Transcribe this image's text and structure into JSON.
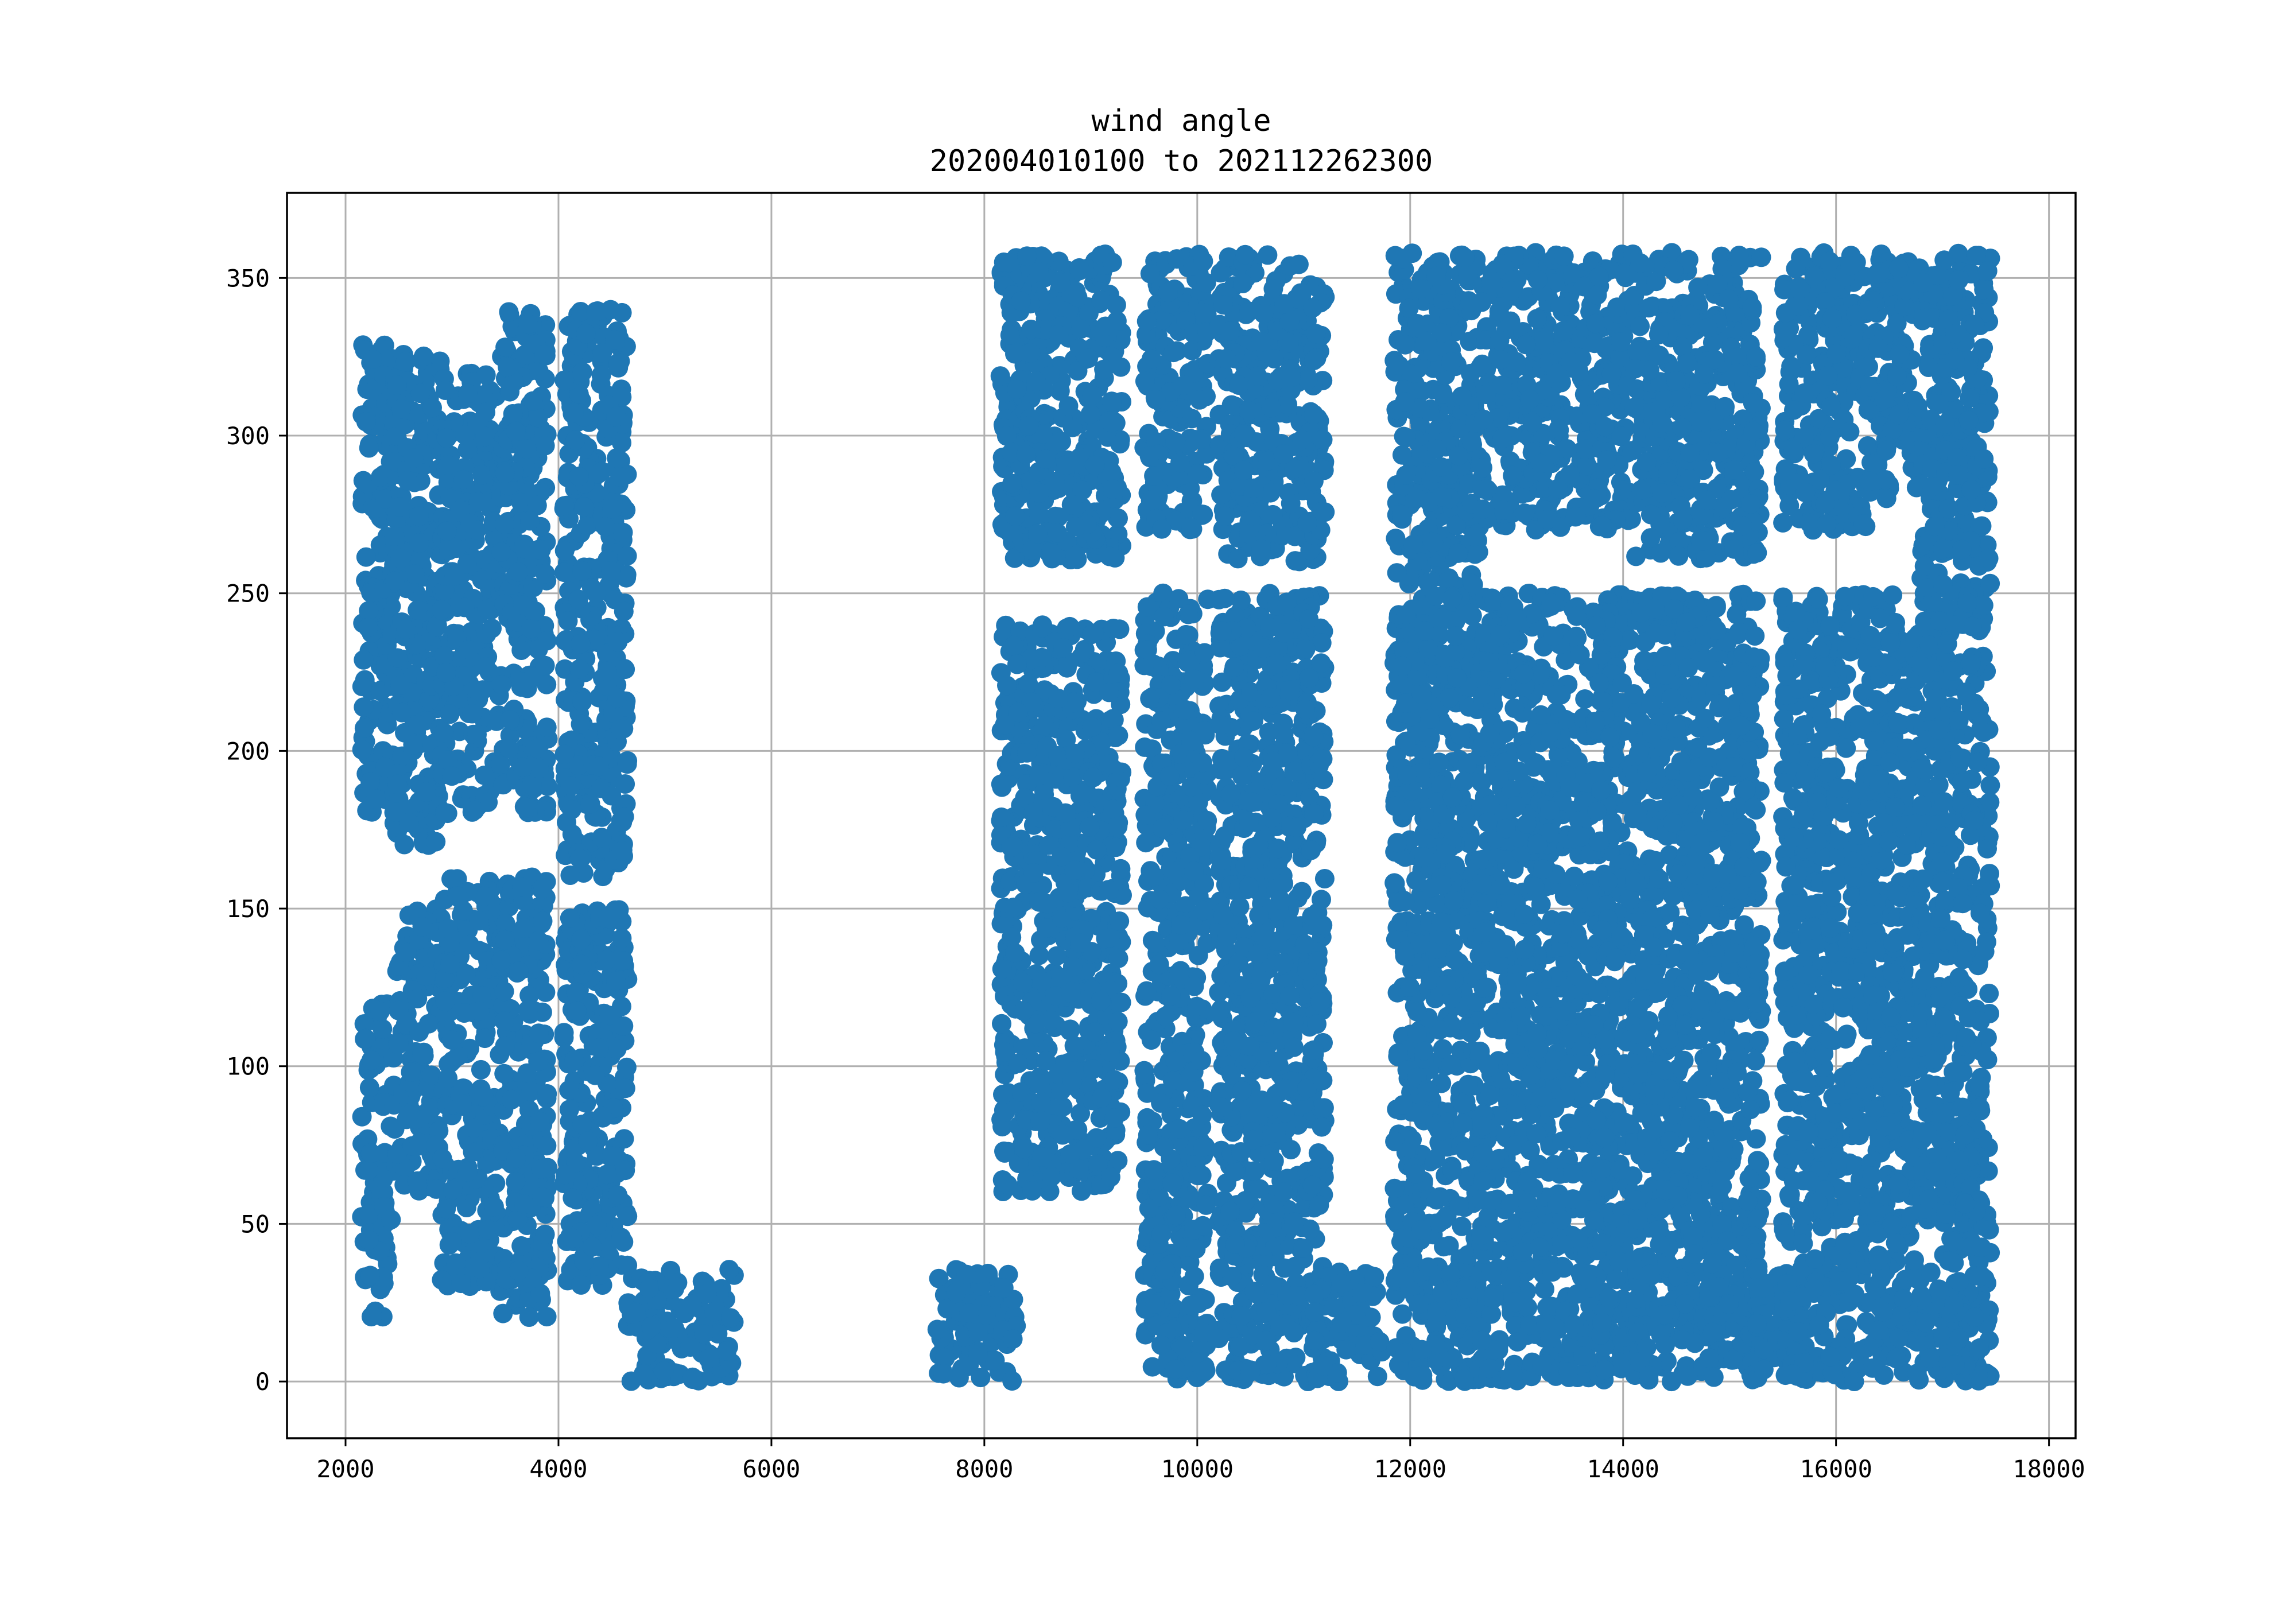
{
  "chart_data": {
    "type": "scatter",
    "title": "wind angle",
    "subtitle": "202004010100 to 202112262300",
    "xlabel": "",
    "ylabel": "",
    "xlim": [
      1450,
      18250
    ],
    "ylim": [
      -18,
      377
    ],
    "xticks": [
      2000,
      4000,
      6000,
      8000,
      10000,
      12000,
      14000,
      16000,
      18000
    ],
    "yticks": [
      0,
      50,
      100,
      150,
      200,
      250,
      300,
      350
    ],
    "grid": true,
    "marker_color": "#1f77b4",
    "clusters": [
      {
        "x": [
          2150,
          2450
        ],
        "y_bands": [
          [
            20,
            120
          ],
          [
            180,
            330
          ]
        ]
      },
      {
        "x": [
          2450,
          2900
        ],
        "y_bands": [
          [
            60,
            150
          ],
          [
            170,
            330
          ]
        ]
      },
      {
        "x": [
          2900,
          3450
        ],
        "y_bands": [
          [
            30,
            160
          ],
          [
            180,
            320
          ]
        ]
      },
      {
        "x": [
          3450,
          3900
        ],
        "y_bands": [
          [
            20,
            160
          ],
          [
            180,
            340
          ]
        ]
      },
      {
        "x": [
          4050,
          4650
        ],
        "y_bands": [
          [
            30,
            150
          ],
          [
            160,
            340
          ]
        ]
      },
      {
        "x": [
          4650,
          5650
        ],
        "y_bands": [
          [
            0,
            36
          ]
        ]
      },
      {
        "x": [
          7550,
          8300
        ],
        "y_bands": [
          [
            0,
            36
          ]
        ]
      },
      {
        "x": [
          8150,
          9300
        ],
        "y_bands": [
          [
            60,
            150
          ],
          [
            150,
            240
          ],
          [
            260,
            358
          ]
        ]
      },
      {
        "x": [
          9500,
          10100
        ],
        "y_bands": [
          [
            0,
            120
          ],
          [
            120,
            250
          ],
          [
            270,
            358
          ]
        ]
      },
      {
        "x": [
          10200,
          11200
        ],
        "y_bands": [
          [
            0,
            120
          ],
          [
            120,
            250
          ],
          [
            260,
            358
          ]
        ]
      },
      {
        "x": [
          11100,
          11750
        ],
        "y_bands": [
          [
            0,
            36
          ]
        ]
      },
      {
        "x": [
          11850,
          12650
        ],
        "y_bands": [
          [
            0,
            150
          ],
          [
            150,
            260
          ],
          [
            260,
            358
          ]
        ]
      },
      {
        "x": [
          12650,
          14100
        ],
        "y_bands": [
          [
            0,
            170
          ],
          [
            170,
            250
          ],
          [
            270,
            358
          ]
        ]
      },
      {
        "x": [
          14100,
          15300
        ],
        "y_bands": [
          [
            0,
            170
          ],
          [
            170,
            250
          ],
          [
            260,
            358
          ]
        ]
      },
      {
        "x": [
          15250,
          15550
        ],
        "y_bands": [
          [
            0,
            40
          ]
        ]
      },
      {
        "x": [
          15500,
          16300
        ],
        "y_bands": [
          [
            0,
            170
          ],
          [
            170,
            250
          ],
          [
            270,
            358
          ]
        ]
      },
      {
        "x": [
          16300,
          16800
        ],
        "y_bands": [
          [
            0,
            170
          ],
          [
            170,
            250
          ],
          [
            280,
            358
          ]
        ]
      },
      {
        "x": [
          16800,
          17450
        ],
        "y_bands": [
          [
            0,
            360
          ]
        ]
      }
    ]
  }
}
